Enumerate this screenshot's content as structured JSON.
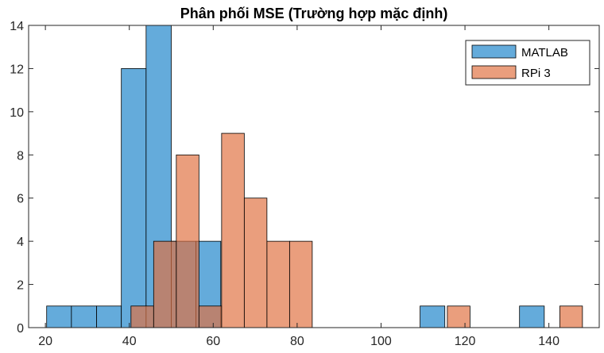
{
  "chart_data": {
    "type": "bar",
    "title": "Phân phối MSE (Trường hợp mặc định)",
    "xlabel": "",
    "ylabel": "",
    "xlim": [
      16,
      152
    ],
    "ylim": [
      0,
      14
    ],
    "xticks": [
      "20",
      "40",
      "60",
      "80",
      "100",
      "120",
      "140"
    ],
    "yticks": [
      "0",
      "2",
      "4",
      "6",
      "8",
      "10",
      "12",
      "14"
    ],
    "grid": false,
    "legend_position": "top-right",
    "series": [
      {
        "name": "MATLAB",
        "color": "#0072BD",
        "bins": [
          {
            "x0": 20.3,
            "x1": 26.2,
            "count": 1
          },
          {
            "x0": 26.2,
            "x1": 32.2,
            "count": 1
          },
          {
            "x0": 32.2,
            "x1": 38.1,
            "count": 1
          },
          {
            "x0": 38.1,
            "x1": 44.0,
            "count": 12
          },
          {
            "x0": 44.0,
            "x1": 50.0,
            "count": 14
          },
          {
            "x0": 50.0,
            "x1": 55.9,
            "count": 4
          },
          {
            "x0": 55.9,
            "x1": 61.8,
            "count": 4
          },
          {
            "x0": 109.3,
            "x1": 115.2,
            "count": 1
          },
          {
            "x0": 133.0,
            "x1": 138.9,
            "count": 1
          }
        ]
      },
      {
        "name": "RPi 3",
        "color": "#D95319",
        "bins": [
          {
            "x0": 40.4,
            "x1": 45.8,
            "count": 1
          },
          {
            "x0": 45.8,
            "x1": 51.2,
            "count": 4
          },
          {
            "x0": 51.2,
            "x1": 56.6,
            "count": 8
          },
          {
            "x0": 56.6,
            "x1": 62.0,
            "count": 1
          },
          {
            "x0": 62.0,
            "x1": 67.4,
            "count": 9
          },
          {
            "x0": 67.4,
            "x1": 72.8,
            "count": 6
          },
          {
            "x0": 72.8,
            "x1": 78.2,
            "count": 4
          },
          {
            "x0": 78.2,
            "x1": 83.6,
            "count": 4
          },
          {
            "x0": 115.8,
            "x1": 121.2,
            "count": 1
          },
          {
            "x0": 142.6,
            "x1": 148.0,
            "count": 1
          }
        ]
      }
    ]
  }
}
